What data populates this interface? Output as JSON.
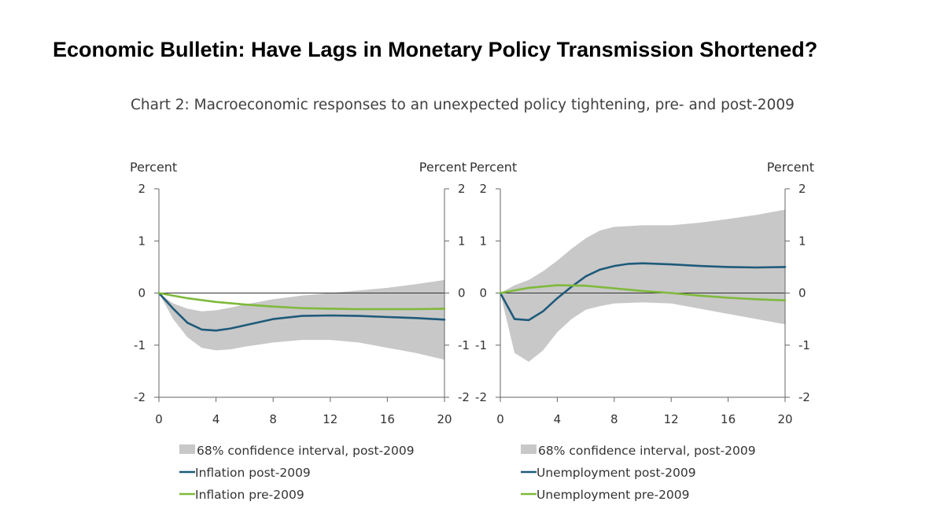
{
  "headline": "Economic Bulletin: Have Lags in Monetary Policy Transmission Shortened?",
  "chart_title": "Chart 2: Macroeconomic responses to an unexpected policy tightening, pre- and post-2009",
  "chart_data": [
    {
      "type": "line",
      "panel": "left",
      "left_unit": "Percent",
      "right_unit": "Percent",
      "ylim": [
        -2,
        2
      ],
      "xlim": [
        0,
        20
      ],
      "yticks": [
        2,
        1,
        0,
        -1,
        -2
      ],
      "yticks_left_labels": [
        "2",
        "1",
        "0",
        "-1",
        "-2"
      ],
      "yticks_right_labels": [
        "2",
        "1",
        "0",
        "-1",
        "-2"
      ],
      "xticks": [
        0,
        4,
        8,
        12,
        16,
        20
      ],
      "xticks_labels": [
        "0",
        "4",
        "8",
        "12",
        "16",
        "20"
      ],
      "zero_line": true,
      "band": {
        "name": "68% confidence interval, post-2009",
        "color": "#c8c8c8",
        "x": [
          0,
          1,
          2,
          3,
          4,
          5,
          6,
          8,
          10,
          12,
          14,
          16,
          18,
          20
        ],
        "upper": [
          0,
          -0.2,
          -0.3,
          -0.35,
          -0.33,
          -0.28,
          -0.22,
          -0.12,
          -0.05,
          0,
          0.05,
          0.1,
          0.17,
          0.25
        ],
        "lower": [
          0,
          -0.5,
          -0.85,
          -1.05,
          -1.1,
          -1.08,
          -1.03,
          -0.95,
          -0.9,
          -0.9,
          -0.95,
          -1.05,
          -1.15,
          -1.28
        ]
      },
      "series": [
        {
          "name": "Inflation post-2009",
          "color": "#1f5a7a",
          "x": [
            0,
            1,
            2,
            3,
            4,
            5,
            6,
            8,
            10,
            12,
            14,
            16,
            18,
            20
          ],
          "values": [
            0,
            -0.3,
            -0.57,
            -0.7,
            -0.72,
            -0.68,
            -0.62,
            -0.5,
            -0.44,
            -0.43,
            -0.44,
            -0.46,
            -0.48,
            -0.51
          ]
        },
        {
          "name": "Inflation pre-2009",
          "color": "#7fb93c",
          "x": [
            0,
            2,
            4,
            6,
            8,
            10,
            12,
            14,
            16,
            18,
            20
          ],
          "values": [
            0,
            -0.1,
            -0.17,
            -0.22,
            -0.26,
            -0.29,
            -0.3,
            -0.31,
            -0.31,
            -0.31,
            -0.3
          ]
        }
      ]
    },
    {
      "type": "line",
      "panel": "right",
      "left_unit": "Percent",
      "right_unit": "Percent",
      "ylim": [
        -2,
        2
      ],
      "xlim": [
        0,
        20
      ],
      "yticks": [
        2,
        1,
        0,
        -1,
        -2
      ],
      "yticks_left_labels": [
        "2",
        "1",
        "0",
        "-1",
        "-2"
      ],
      "yticks_right_labels": [
        "2",
        "1",
        "0",
        "-1",
        "-2"
      ],
      "xticks": [
        0,
        4,
        8,
        12,
        16,
        20
      ],
      "xticks_labels": [
        "0",
        "4",
        "8",
        "12",
        "16",
        "20"
      ],
      "zero_line": true,
      "band": {
        "name": "68% confidence interval, post-2009",
        "color": "#c8c8c8",
        "x": [
          0,
          1,
          2,
          3,
          4,
          5,
          6,
          7,
          8,
          10,
          12,
          14,
          16,
          18,
          20
        ],
        "upper": [
          0,
          0.15,
          0.25,
          0.42,
          0.62,
          0.85,
          1.05,
          1.2,
          1.27,
          1.3,
          1.3,
          1.35,
          1.42,
          1.5,
          1.6
        ],
        "lower": [
          0,
          -1.15,
          -1.32,
          -1.1,
          -0.75,
          -0.5,
          -0.32,
          -0.25,
          -0.2,
          -0.18,
          -0.2,
          -0.3,
          -0.4,
          -0.5,
          -0.6
        ]
      },
      "series": [
        {
          "name": "Unemployment post-2009",
          "color": "#1f5a7a",
          "x": [
            0,
            1,
            2,
            3,
            4,
            5,
            6,
            7,
            8,
            9,
            10,
            12,
            14,
            16,
            18,
            20
          ],
          "values": [
            0,
            -0.5,
            -0.52,
            -0.35,
            -0.1,
            0.12,
            0.32,
            0.45,
            0.52,
            0.56,
            0.57,
            0.55,
            0.52,
            0.5,
            0.49,
            0.5
          ]
        },
        {
          "name": "Unemployment pre-2009",
          "color": "#7fb93c",
          "x": [
            0,
            2,
            4,
            6,
            8,
            10,
            12,
            14,
            16,
            18,
            20
          ],
          "values": [
            0,
            0.1,
            0.15,
            0.14,
            0.09,
            0.04,
            0,
            -0.05,
            -0.09,
            -0.12,
            -0.14
          ]
        }
      ]
    }
  ]
}
